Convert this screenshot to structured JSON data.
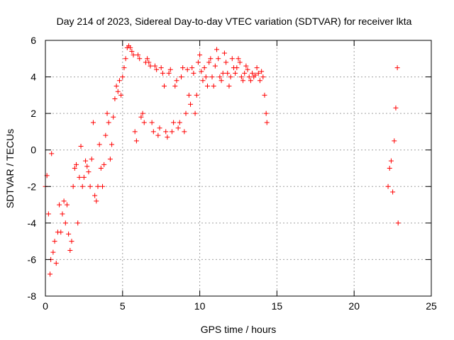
{
  "chart_data": {
    "type": "scatter",
    "title": "Day 214 of 2023, Sidereal Day-to-day VTEC variation (SDTVAR) for receiver lkta",
    "xlabel": "GPS time / hours",
    "ylabel": "SDTVAR / TECUs",
    "xlim": [
      0,
      25
    ],
    "ylim": [
      -8,
      6
    ],
    "xticks": [
      0,
      5,
      10,
      15,
      20,
      25
    ],
    "yticks": [
      -8,
      -6,
      -4,
      -2,
      0,
      2,
      4,
      6
    ],
    "grid": true,
    "marker": "+",
    "color": "#ff0000",
    "series": [
      {
        "name": "",
        "x": [
          0.0,
          0.1,
          0.2,
          0.3,
          0.35,
          0.4,
          0.5,
          0.6,
          0.7,
          0.8,
          0.9,
          1.0,
          1.1,
          1.2,
          1.3,
          1.4,
          1.5,
          1.6,
          1.7,
          1.8,
          1.9,
          2.0,
          2.1,
          2.2,
          2.3,
          2.4,
          2.5,
          2.6,
          2.7,
          2.8,
          2.9,
          3.0,
          3.1,
          3.2,
          3.3,
          3.4,
          3.5,
          3.6,
          3.7,
          3.8,
          3.9,
          4.0,
          4.1,
          4.2,
          4.3,
          4.4,
          4.5,
          4.6,
          4.7,
          4.8,
          4.9,
          5.0,
          5.1,
          5.2,
          5.3,
          5.4,
          5.5,
          5.6,
          5.7,
          5.8,
          5.9,
          6.0,
          6.1,
          6.2,
          6.3,
          6.4,
          6.5,
          6.6,
          6.7,
          6.8,
          6.9,
          7.0,
          7.1,
          7.2,
          7.3,
          7.4,
          7.5,
          7.6,
          7.7,
          7.8,
          7.9,
          8.0,
          8.1,
          8.2,
          8.3,
          8.4,
          8.5,
          8.6,
          8.7,
          8.8,
          8.9,
          9.0,
          9.1,
          9.2,
          9.3,
          9.4,
          9.5,
          9.6,
          9.7,
          9.8,
          9.9,
          10.0,
          10.1,
          10.2,
          10.3,
          10.4,
          10.5,
          10.6,
          10.7,
          10.8,
          10.9,
          11.0,
          11.1,
          11.2,
          11.3,
          11.4,
          11.5,
          11.6,
          11.7,
          11.8,
          11.9,
          12.0,
          12.1,
          12.2,
          12.3,
          12.4,
          12.5,
          12.6,
          12.7,
          12.8,
          12.9,
          13.0,
          13.1,
          13.2,
          13.3,
          13.4,
          13.5,
          13.6,
          13.7,
          13.8,
          13.9,
          14.0,
          14.1,
          14.2,
          14.3,
          14.35,
          22.2,
          22.3,
          22.4,
          22.5,
          22.6,
          22.7,
          22.8,
          22.85
        ],
        "y": [
          -2.0,
          -1.4,
          -3.5,
          -6.8,
          -6.0,
          -0.2,
          -5.6,
          -5.0,
          -6.2,
          -4.5,
          -3.0,
          -4.5,
          -3.5,
          -2.8,
          -4.0,
          -3.0,
          -4.6,
          -5.5,
          -5.0,
          -2.0,
          -1.0,
          -0.8,
          -4.0,
          -1.5,
          0.2,
          -2.0,
          -1.5,
          -0.6,
          -0.9,
          -1.2,
          -2.0,
          -0.5,
          1.5,
          -2.5,
          -2.8,
          -2.0,
          0.3,
          -1.0,
          -2.0,
          -0.8,
          0.8,
          2.0,
          1.5,
          -0.5,
          0.3,
          1.8,
          2.8,
          3.5,
          3.2,
          3.8,
          3.0,
          4.0,
          4.5,
          5.0,
          5.6,
          5.7,
          5.6,
          5.4,
          5.2,
          1.0,
          0.5,
          5.2,
          5.0,
          1.8,
          2.0,
          1.5,
          4.8,
          5.0,
          4.8,
          4.6,
          1.5,
          1.0,
          4.6,
          4.4,
          0.8,
          1.2,
          4.5,
          4.2,
          3.5,
          1.0,
          0.7,
          4.2,
          4.4,
          1.0,
          1.5,
          3.5,
          3.8,
          1.2,
          1.5,
          4.0,
          4.5,
          1.0,
          2.0,
          4.4,
          3.0,
          2.5,
          4.5,
          4.2,
          2.0,
          3.0,
          4.8,
          5.2,
          4.3,
          3.8,
          4.5,
          4.0,
          3.5,
          4.8,
          5.0,
          4.0,
          3.5,
          4.6,
          5.5,
          5.0,
          4.0,
          3.8,
          4.2,
          5.3,
          4.8,
          4.2,
          3.5,
          4.0,
          5.0,
          4.5,
          4.2,
          4.5,
          5.0,
          4.8,
          4.0,
          3.8,
          4.2,
          4.6,
          4.4,
          4.0,
          3.8,
          4.2,
          4.0,
          4.1,
          4.5,
          4.2,
          3.8,
          4.3,
          4.0,
          3.0,
          2.0,
          1.5,
          -2.0,
          -1.0,
          -0.6,
          -2.3,
          0.5,
          2.3,
          4.5,
          -4.0
        ]
      }
    ]
  }
}
